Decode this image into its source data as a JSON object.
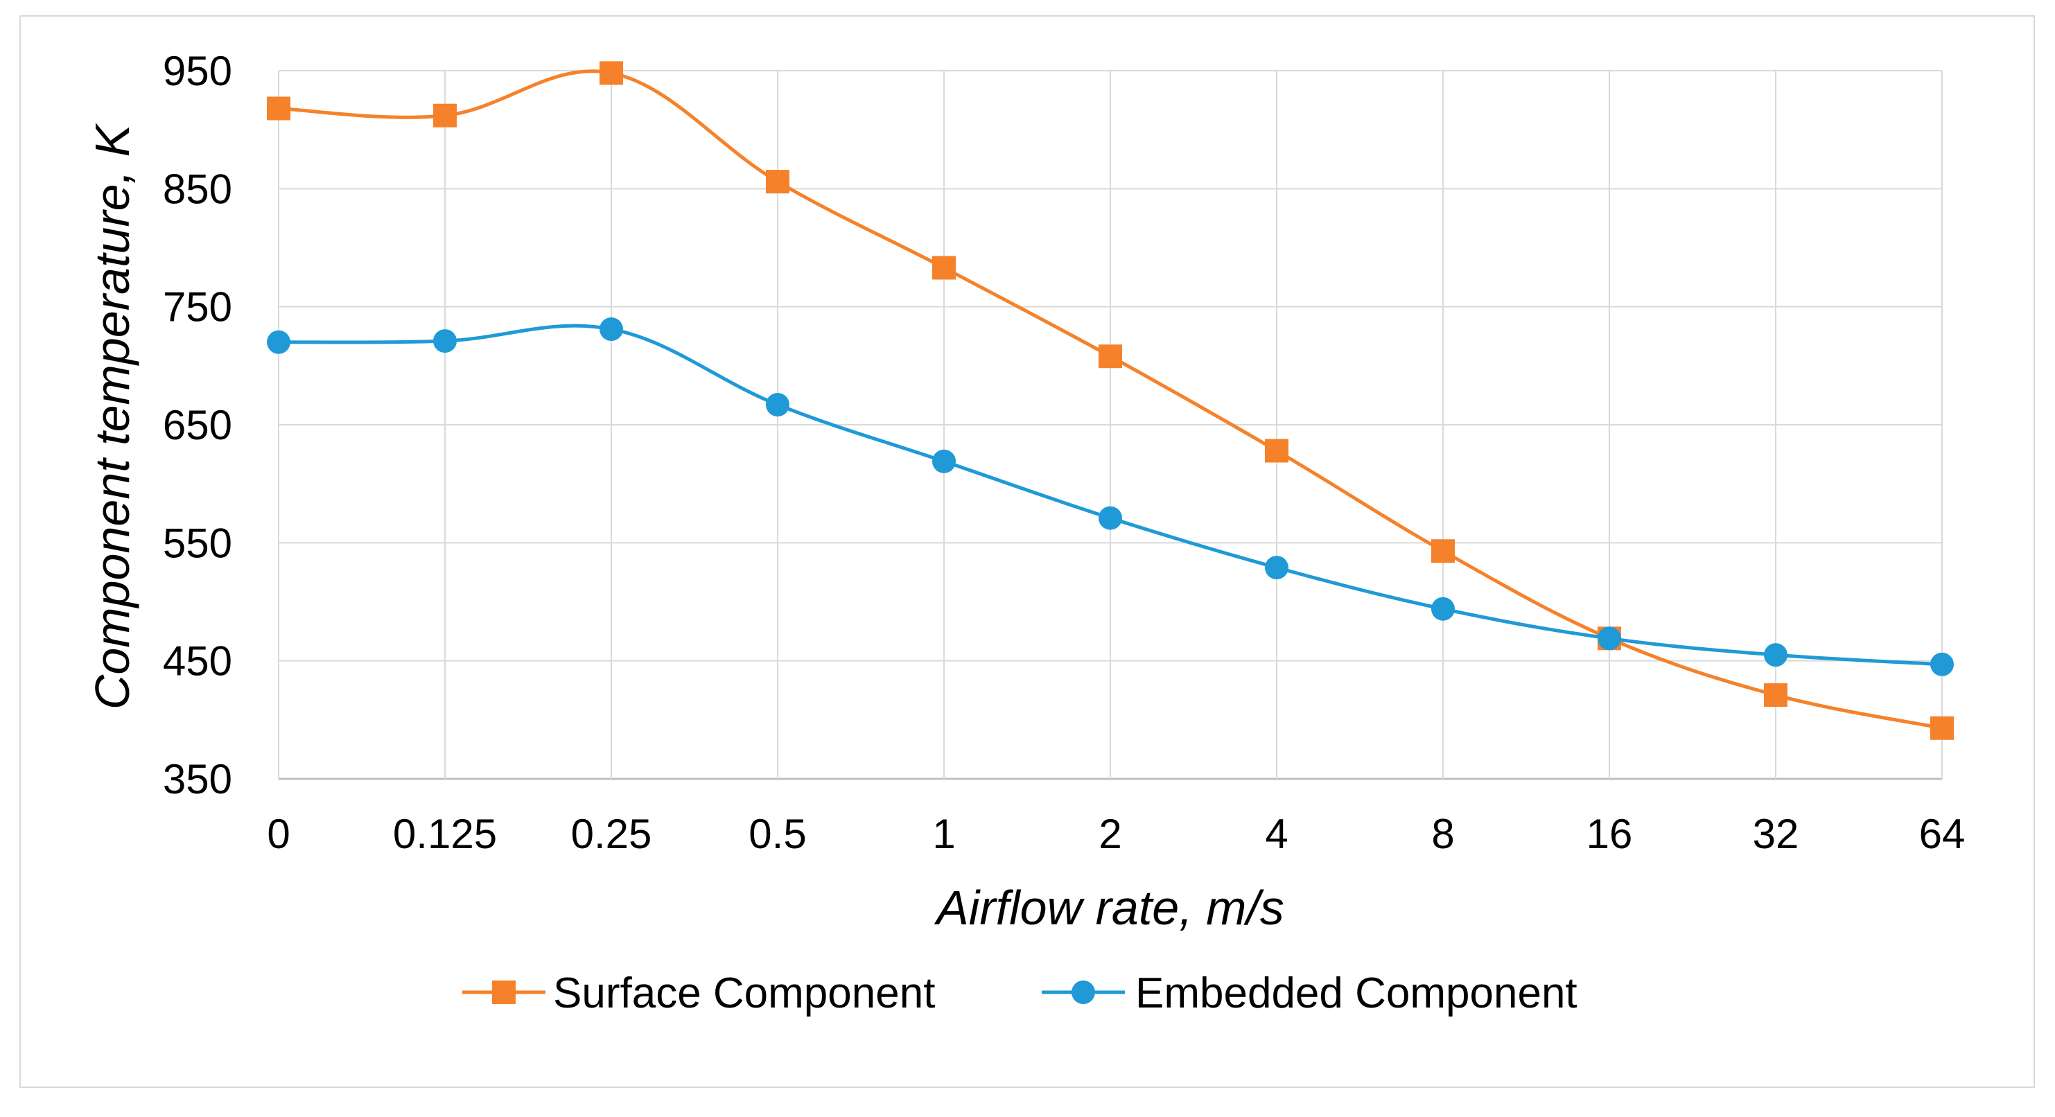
{
  "chart_data": {
    "type": "line",
    "title": "",
    "xlabel": "Airflow rate, m/s",
    "ylabel": "Component temperature, K",
    "categories": [
      "0",
      "0.125",
      "0.25",
      "0.5",
      "1",
      "2",
      "4",
      "8",
      "16",
      "32",
      "64"
    ],
    "ylim": [
      350,
      950
    ],
    "yticks": [
      350,
      450,
      550,
      650,
      750,
      850,
      950
    ],
    "grid": true,
    "legend": "bottom",
    "series": [
      {
        "name": "Surface Component",
        "marker": "square",
        "color": "#f5822a",
        "values": [
          918,
          912,
          948,
          856,
          783,
          708,
          628,
          543,
          469,
          421,
          393
        ]
      },
      {
        "name": "Embedded Component",
        "marker": "circle",
        "color": "#1f9ad6",
        "values": [
          720,
          721,
          731,
          667,
          619,
          571,
          529,
          494,
          469,
          455,
          447
        ]
      }
    ]
  }
}
